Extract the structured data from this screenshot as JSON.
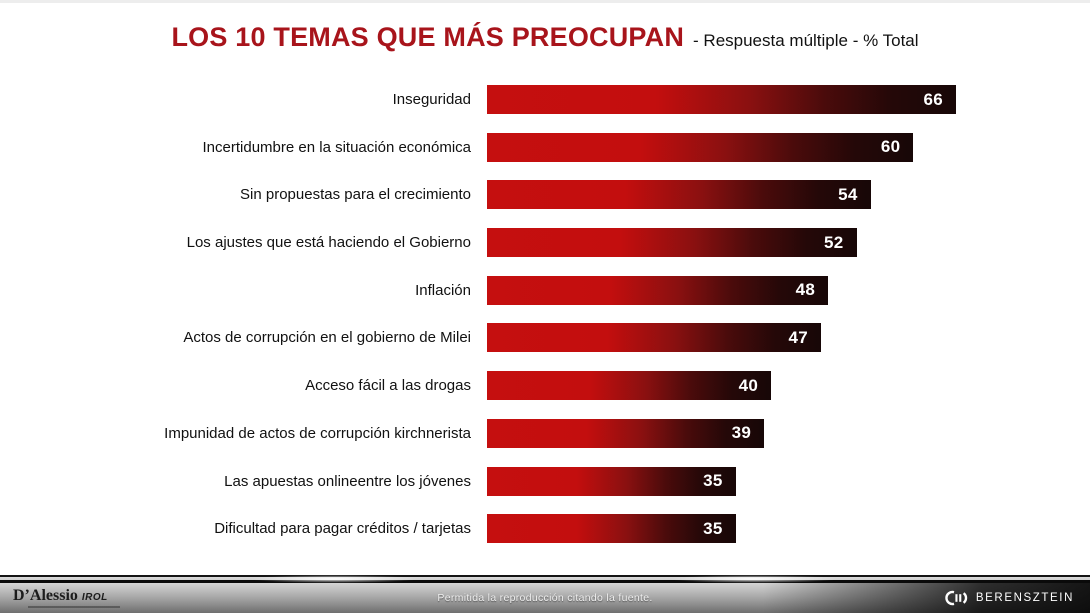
{
  "header": {
    "title": "LOS 10 TEMAS QUE MÁS PREOCUPAN",
    "subtitle": "- Respuesta múltiple - % Total",
    "title_color": "#a8141b"
  },
  "chart_data": {
    "type": "bar",
    "orientation": "horizontal",
    "categories": [
      "Inseguridad",
      "Incertidumbre en la situación económica",
      "Sin propuestas para el crecimiento",
      "Los ajustes que está haciendo el Gobierno",
      "Inflación",
      "Actos de corrupción en el gobierno de Milei",
      "Acceso fácil a las drogas",
      "Impunidad de actos de corrupción kirchnerista",
      "Las apuestas onlineentre los jóvenes",
      "Dificultad para pagar créditos / tarjetas"
    ],
    "values": [
      66,
      60,
      54,
      52,
      48,
      47,
      40,
      39,
      35,
      35
    ],
    "xlim": [
      0,
      66
    ],
    "value_labels_shown": true,
    "bar_color_start": "#c50f0f",
    "bar_color_end": "#170707",
    "value_label_color": "#ffffff",
    "grid": false,
    "legend": false
  },
  "footer": {
    "left_logo_name": "D’Alessio",
    "left_logo_suffix": "IROL",
    "center_text": "Permitida la reproducción citando la fuente.",
    "right_logo_text": "BERENSZTEIN"
  }
}
